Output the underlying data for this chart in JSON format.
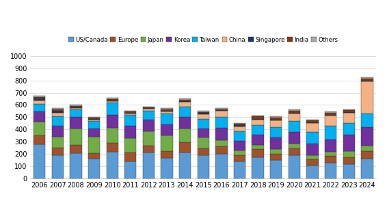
{
  "years": [
    2006,
    2007,
    2008,
    2009,
    2010,
    2011,
    2012,
    2013,
    2014,
    2015,
    2016,
    2017,
    2018,
    2019,
    2020,
    2021,
    2022,
    2023,
    2024
  ],
  "regions": [
    "US/Canada",
    "Europe",
    "Japan",
    "Korea",
    "Taiwan",
    "China",
    "Singapore",
    "India",
    "Others"
  ],
  "colors": [
    "#5B9BD5",
    "#A0522D",
    "#70AD47",
    "#7030A0",
    "#00B0F0",
    "#F4B183",
    "#1F3864",
    "#843C0C",
    "#A9A9A9"
  ],
  "data": {
    "US/Canada": [
      280,
      190,
      205,
      165,
      220,
      140,
      210,
      170,
      215,
      190,
      200,
      140,
      175,
      150,
      190,
      105,
      130,
      120,
      165
    ],
    "Europe": [
      70,
      60,
      70,
      40,
      70,
      75,
      60,
      55,
      80,
      55,
      60,
      50,
      65,
      50,
      55,
      50,
      55,
      55,
      60
    ],
    "Japan": [
      115,
      90,
      135,
      135,
      125,
      115,
      115,
      125,
      115,
      90,
      55,
      40,
      35,
      40,
      40,
      35,
      35,
      50,
      45
    ],
    "Korea": [
      80,
      90,
      90,
      65,
      105,
      100,
      95,
      90,
      90,
      75,
      100,
      80,
      80,
      95,
      95,
      95,
      100,
      130,
      150
    ],
    "Taiwan": [
      65,
      80,
      65,
      65,
      100,
      90,
      75,
      90,
      85,
      75,
      85,
      75,
      80,
      85,
      90,
      95,
      110,
      95,
      110
    ],
    "China": [
      25,
      25,
      12,
      12,
      12,
      12,
      12,
      18,
      40,
      40,
      50,
      40,
      45,
      55,
      60,
      70,
      85,
      85,
      260
    ],
    "Singapore": [
      20,
      15,
      5,
      5,
      5,
      5,
      5,
      5,
      5,
      8,
      8,
      8,
      8,
      5,
      5,
      5,
      5,
      5,
      5
    ],
    "India": [
      10,
      15,
      10,
      10,
      10,
      10,
      8,
      8,
      10,
      8,
      8,
      12,
      18,
      18,
      18,
      18,
      18,
      18,
      20
    ],
    "Others": [
      10,
      8,
      8,
      8,
      12,
      8,
      8,
      12,
      12,
      10,
      10,
      8,
      8,
      8,
      8,
      8,
      8,
      8,
      12
    ]
  },
  "ylim": [
    0,
    1000
  ],
  "yticks": [
    0,
    100,
    200,
    300,
    400,
    500,
    600,
    700,
    800,
    900,
    1000
  ],
  "background_color": "#ffffff",
  "grid_color": "#d0d0d0"
}
